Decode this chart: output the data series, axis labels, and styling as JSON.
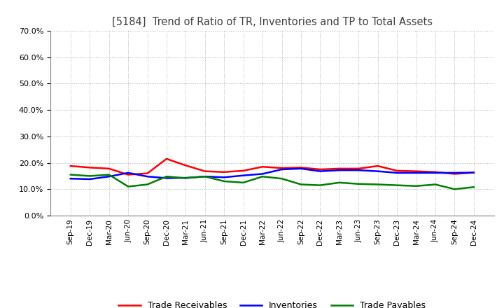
{
  "title": "[5184]  Trend of Ratio of TR, Inventories and TP to Total Assets",
  "title_color": "#404040",
  "background_color": "#ffffff",
  "grid_color": "#b0b0b0",
  "ylim": [
    0.0,
    0.7
  ],
  "yticks": [
    0.0,
    0.1,
    0.2,
    0.3,
    0.4,
    0.5,
    0.6,
    0.7
  ],
  "x_labels": [
    "Sep-19",
    "Dec-19",
    "Mar-20",
    "Jun-20",
    "Sep-20",
    "Dec-20",
    "Mar-21",
    "Jun-21",
    "Sep-21",
    "Dec-21",
    "Mar-22",
    "Jun-22",
    "Sep-22",
    "Dec-22",
    "Mar-23",
    "Jun-23",
    "Sep-23",
    "Dec-23",
    "Mar-24",
    "Jun-24",
    "Sep-24",
    "Dec-24"
  ],
  "trade_receivables": [
    0.188,
    0.182,
    0.178,
    0.155,
    0.16,
    0.215,
    0.19,
    0.168,
    0.165,
    0.17,
    0.185,
    0.18,
    0.182,
    0.175,
    0.178,
    0.178,
    0.188,
    0.17,
    0.168,
    0.165,
    0.158,
    0.163
  ],
  "inventories": [
    0.14,
    0.138,
    0.148,
    0.162,
    0.148,
    0.142,
    0.143,
    0.148,
    0.145,
    0.152,
    0.158,
    0.175,
    0.178,
    0.168,
    0.172,
    0.172,
    0.168,
    0.162,
    0.162,
    0.162,
    0.162,
    0.163
  ],
  "trade_payables": [
    0.155,
    0.15,
    0.155,
    0.11,
    0.118,
    0.148,
    0.142,
    0.148,
    0.13,
    0.125,
    0.148,
    0.14,
    0.118,
    0.115,
    0.125,
    0.12,
    0.118,
    0.115,
    0.112,
    0.118,
    0.1,
    0.108
  ],
  "tr_color": "#ff0000",
  "inv_color": "#0000ff",
  "tp_color": "#008000",
  "line_width": 1.8,
  "legend_labels": [
    "Trade Receivables",
    "Inventories",
    "Trade Payables"
  ],
  "legend_colors": [
    "#ff0000",
    "#0000ff",
    "#008000"
  ]
}
